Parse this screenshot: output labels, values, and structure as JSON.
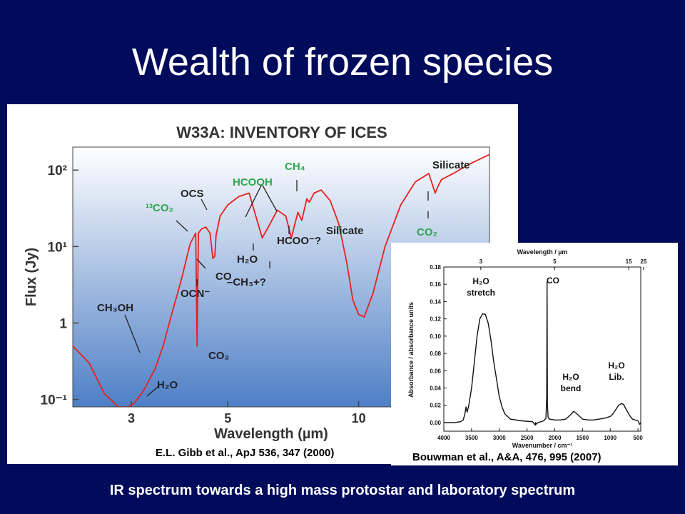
{
  "slide": {
    "title": "Wealth of frozen species",
    "caption": "IR spectrum towards a high mass protostar and laboratory spectrum",
    "citation_left": "E.L. Gibb et al., ApJ 536, 347 (2000)",
    "citation_right": "Bouwman et al., A&A, 476, 995 (2007)"
  },
  "chart_data": [
    {
      "type": "line",
      "title": "W33A: INVENTORY OF ICES",
      "xlabel": "Wavelength (µm)",
      "ylabel": "Flux (Jy)",
      "x_scale": "log",
      "y_scale": "log",
      "xlim": [
        2.2,
        20
      ],
      "ylim": [
        0.08,
        200
      ],
      "x_ticks": [
        3,
        5,
        10
      ],
      "y_ticks": [
        {
          "value": 0.1,
          "label": "10⁻¹"
        },
        {
          "value": 1,
          "label": "1"
        },
        {
          "value": 10,
          "label": "10¹"
        },
        {
          "value": 100,
          "label": "10²"
        }
      ],
      "series": [
        {
          "color": "#e8211d",
          "x": [
            2.2,
            2.4,
            2.6,
            2.8,
            2.95,
            3.05,
            3.2,
            3.4,
            3.55,
            3.7,
            3.9,
            4.1,
            4.22,
            4.25,
            4.28,
            4.35,
            4.45,
            4.55,
            4.62,
            4.67,
            4.7,
            4.8,
            5.0,
            5.3,
            5.6,
            5.8,
            6.0,
            6.2,
            6.5,
            6.8,
            7.0,
            7.25,
            7.4,
            7.6,
            7.7,
            7.9,
            8.2,
            8.6,
            9.0,
            9.4,
            9.7,
            10.0,
            10.3,
            10.8,
            11.5,
            12.5,
            13.5,
            14.5,
            15.0,
            15.2,
            15.5,
            16.5,
            18.0,
            20.0
          ],
          "y": [
            0.5,
            0.3,
            0.12,
            0.08,
            0.08,
            0.09,
            0.13,
            0.25,
            0.5,
            1.2,
            3.5,
            11,
            15,
            0.5,
            15,
            17,
            18,
            15,
            7,
            7.5,
            14,
            25,
            35,
            45,
            50,
            25,
            13,
            18,
            30,
            25,
            13,
            28,
            22,
            42,
            38,
            50,
            55,
            40,
            20,
            6,
            2,
            1.3,
            1.2,
            2.5,
            10,
            35,
            70,
            90,
            50,
            60,
            75,
            90,
            120,
            160
          ]
        }
      ],
      "annotations": [
        {
          "text": "Silicate",
          "color": "#222222"
        },
        {
          "text": "Silicate",
          "color": "#222222"
        },
        {
          "text": "CH₃OH",
          "color": "#222222"
        },
        {
          "text": "H₂O",
          "color": "#222222"
        },
        {
          "text": "CO₂",
          "color": "#222222"
        },
        {
          "text": "¹³CO₂",
          "color": "#2aa84a"
        },
        {
          "text": "OCS",
          "color": "#222222"
        },
        {
          "text": "CO",
          "color": "#222222"
        },
        {
          "text": "OCN⁻",
          "color": "#222222"
        },
        {
          "text": "HCOOH",
          "color": "#2aa84a"
        },
        {
          "text": "H₂O",
          "color": "#222222"
        },
        {
          "text": "–CH₃+?",
          "color": "#222222"
        },
        {
          "text": "CH₄",
          "color": "#2aa84a"
        },
        {
          "text": "HCOO⁻?",
          "color": "#222222"
        },
        {
          "text": "CO₂",
          "color": "#2aa84a"
        }
      ]
    },
    {
      "type": "line",
      "xlabel": "Wavenumber / cm⁻¹",
      "x2label": "Wavelength / µm",
      "ylabel": "Absorbance / absorbance units",
      "xlim": [
        4000,
        450
      ],
      "ylim": [
        -0.01,
        0.18
      ],
      "x_ticks": [
        4000,
        3500,
        3000,
        2500,
        2000,
        1500,
        1000,
        500
      ],
      "x2_ticks": [
        {
          "label": "3",
          "wavenumber": 3333
        },
        {
          "label": "5",
          "wavenumber": 2000
        },
        {
          "label": "15",
          "wavenumber": 667
        },
        {
          "label": "25",
          "wavenumber": 400
        }
      ],
      "y_ticks": [
        0.0,
        0.02,
        0.04,
        0.06,
        0.08,
        0.1,
        0.12,
        0.14,
        0.16,
        0.18
      ],
      "series": [
        {
          "color": "#111111",
          "x": [
            4000,
            3800,
            3700,
            3650,
            3620,
            3600,
            3580,
            3550,
            3500,
            3450,
            3400,
            3350,
            3300,
            3250,
            3200,
            3150,
            3100,
            3050,
            3000,
            2950,
            2900,
            2800,
            2600,
            2400,
            2350,
            2345,
            2340,
            2300,
            2200,
            2160,
            2145,
            2139,
            2133,
            2120,
            2100,
            2000,
            1900,
            1800,
            1700,
            1660,
            1600,
            1500,
            1400,
            1300,
            1200,
            1100,
            1000,
            950,
            900,
            850,
            800,
            760,
            720,
            650,
            600,
            550,
            500,
            470,
            450
          ],
          "y": [
            0.0,
            0.0,
            0.001,
            0.003,
            0.01,
            0.018,
            0.012,
            0.02,
            0.04,
            0.07,
            0.1,
            0.12,
            0.126,
            0.125,
            0.115,
            0.095,
            0.07,
            0.05,
            0.03,
            0.018,
            0.01,
            0.004,
            0.002,
            0.001,
            -0.003,
            0.0,
            -0.002,
            0.0,
            0.002,
            0.005,
            0.03,
            0.163,
            0.02,
            0.006,
            0.004,
            0.003,
            0.003,
            0.004,
            0.01,
            0.013,
            0.01,
            0.004,
            0.003,
            0.003,
            0.004,
            0.005,
            0.007,
            0.01,
            0.015,
            0.02,
            0.022,
            0.021,
            0.016,
            0.008,
            0.004,
            0.003,
            0.002,
            -0.002,
            0.0
          ]
        }
      ],
      "annotations": [
        {
          "text": "H₂O stretch"
        },
        {
          "text": "CO"
        },
        {
          "text": "H₂O bend"
        },
        {
          "text": "H₂O Lib."
        }
      ]
    }
  ]
}
